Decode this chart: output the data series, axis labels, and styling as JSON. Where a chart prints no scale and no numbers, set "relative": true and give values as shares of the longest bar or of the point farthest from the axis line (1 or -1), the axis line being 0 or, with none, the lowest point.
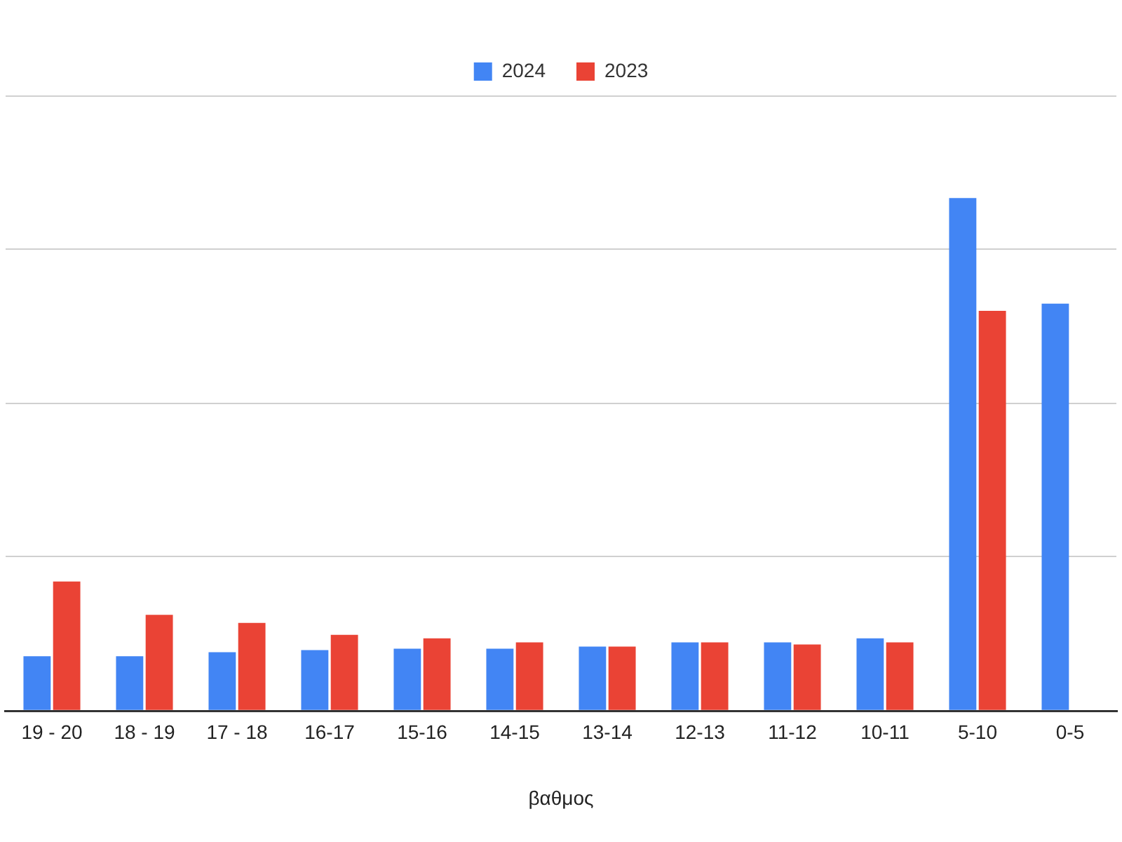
{
  "chart_data": {
    "type": "bar",
    "xlabel": "βαθμος",
    "categories": [
      "19 - 20",
      "18 - 19",
      "17 - 18",
      "16-17",
      "15-16",
      "14-15",
      "13-14",
      "12-13",
      "11-12",
      "10-11",
      "5-10",
      "0-5"
    ],
    "series": [
      {
        "name": "2024",
        "color": "#4285f4",
        "values": [
          0.106,
          0.106,
          0.114,
          0.118,
          0.121,
          0.121,
          0.125,
          0.133,
          0.133,
          0.141,
          1,
          0.794
        ]
      },
      {
        "name": "2023",
        "color": "#ea4335",
        "values": [
          0.252,
          0.187,
          0.171,
          0.148,
          0.141,
          0.133,
          0.125,
          0.133,
          0.129,
          0.133,
          0.78,
          null
        ]
      }
    ],
    "relative": true,
    "grid": "y",
    "legend": "top"
  }
}
